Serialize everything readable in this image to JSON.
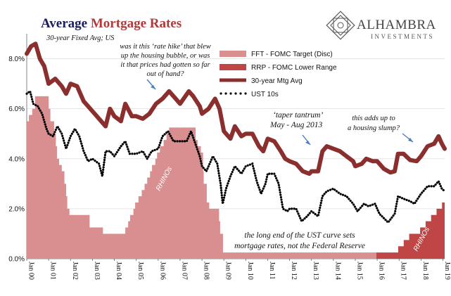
{
  "header": {
    "title_part1": "Average ",
    "title_part2": "Mortgage Rates",
    "subtitle": "30-year Fixed Avg; US"
  },
  "logo": {
    "name": "ALHAMBRA",
    "tagline": "INVESTMENTS",
    "icon": "geometric-star-logo"
  },
  "colors": {
    "fft": "#d98f8f",
    "rrp": "#c04545",
    "mortgage": "#8b2e2e",
    "ust": "#000000",
    "title_navy": "#1a1f5c",
    "title_red": "#b03a3a",
    "annotation_arrow": "#4a7cc0"
  },
  "annotations": {
    "rate_hike": [
      "was it this ‘rate hike’ that blew",
      "up the housing bubble, or was",
      "it that prices had gotten so far",
      "out of hand?"
    ],
    "taper": [
      "‘taper tantrum’",
      "May - Aug 2013"
    ],
    "slump": [
      "this adds up to",
      "a housing slump?"
    ],
    "long_end": [
      "the long end of the UST curve sets",
      "mortgage rates, not the Federal Reserve"
    ],
    "rhinos1": "RHINOs",
    "rhinos2": "RHINOs"
  },
  "chart_data": {
    "type": "line",
    "title": "Average Mortgage Rates",
    "subtitle": "30-year Fixed Avg; US",
    "x_range": [
      2000.0,
      2019.08
    ],
    "ylim": [
      0,
      9
    ],
    "y_ticks": [
      0,
      2,
      4,
      6,
      8
    ],
    "y_tick_labels": [
      "0.0%",
      "2.0%",
      "4.0%",
      "6.0%",
      "8.0%"
    ],
    "x_tick_labels": [
      "Jan 00",
      "Jan 01",
      "Jan 02",
      "Jan 03",
      "Jan 04",
      "Jan 05",
      "Jan 06",
      "Jan 07",
      "Jan 08",
      "Jan 09",
      "Jan 10",
      "Jan 11",
      "Jan 12",
      "Jan 13",
      "Jan 14",
      "Jan 15",
      "Jan 16",
      "Jan 17",
      "Jan 18",
      "Jan 19"
    ],
    "legend": {
      "placement": "top-center"
    },
    "series": [
      {
        "name": "FFT - FOMC Target (Disc)",
        "kind": "step-area",
        "points": [
          [
            2000.0,
            5.5
          ],
          [
            2000.1,
            5.75
          ],
          [
            2000.25,
            6.0
          ],
          [
            2000.38,
            6.5
          ],
          [
            2001.0,
            6.0
          ],
          [
            2001.08,
            5.5
          ],
          [
            2001.25,
            5.0
          ],
          [
            2001.33,
            4.5
          ],
          [
            2001.38,
            4.0
          ],
          [
            2001.48,
            3.75
          ],
          [
            2001.6,
            3.5
          ],
          [
            2001.72,
            3.0
          ],
          [
            2001.8,
            2.5
          ],
          [
            2001.85,
            2.0
          ],
          [
            2001.95,
            1.75
          ],
          [
            2002.87,
            1.25
          ],
          [
            2003.48,
            1.0
          ],
          [
            2004.5,
            1.25
          ],
          [
            2004.63,
            1.5
          ],
          [
            2004.72,
            1.75
          ],
          [
            2004.87,
            2.0
          ],
          [
            2004.95,
            2.25
          ],
          [
            2005.1,
            2.5
          ],
          [
            2005.25,
            2.75
          ],
          [
            2005.38,
            3.0
          ],
          [
            2005.5,
            3.25
          ],
          [
            2005.63,
            3.5
          ],
          [
            2005.72,
            3.75
          ],
          [
            2005.87,
            4.0
          ],
          [
            2005.95,
            4.25
          ],
          [
            2006.08,
            4.5
          ],
          [
            2006.25,
            4.75
          ],
          [
            2006.38,
            5.0
          ],
          [
            2006.5,
            5.25
          ],
          [
            2007.71,
            4.75
          ],
          [
            2007.8,
            4.5
          ],
          [
            2007.95,
            4.25
          ],
          [
            2008.05,
            3.5
          ],
          [
            2008.08,
            3.0
          ],
          [
            2008.22,
            2.25
          ],
          [
            2008.33,
            2.0
          ],
          [
            2008.78,
            1.5
          ],
          [
            2008.83,
            1.0
          ],
          [
            2008.96,
            0.25
          ],
          [
            2015.96,
            0.0
          ]
        ]
      },
      {
        "name": "RRP - FOMC Lower Range",
        "kind": "step-area",
        "points": [
          [
            2015.96,
            0.25
          ],
          [
            2016.96,
            0.5
          ],
          [
            2017.21,
            0.75
          ],
          [
            2017.46,
            1.0
          ],
          [
            2017.96,
            1.25
          ],
          [
            2018.21,
            1.5
          ],
          [
            2018.46,
            1.75
          ],
          [
            2018.71,
            2.0
          ],
          [
            2018.96,
            2.25
          ],
          [
            2019.08,
            2.25
          ]
        ]
      },
      {
        "name": "30-year Mtg Avg",
        "kind": "line",
        "points": [
          [
            2000.0,
            8.2
          ],
          [
            2000.2,
            8.5
          ],
          [
            2000.4,
            8.6
          ],
          [
            2000.6,
            8.0
          ],
          [
            2000.8,
            7.7
          ],
          [
            2001.0,
            7.0
          ],
          [
            2001.3,
            7.2
          ],
          [
            2001.6,
            6.9
          ],
          [
            2001.8,
            6.6
          ],
          [
            2002.0,
            7.0
          ],
          [
            2002.3,
            6.9
          ],
          [
            2002.6,
            6.3
          ],
          [
            2002.8,
            6.1
          ],
          [
            2003.0,
            5.9
          ],
          [
            2003.4,
            5.5
          ],
          [
            2003.6,
            5.3
          ],
          [
            2003.8,
            6.0
          ],
          [
            2004.0,
            5.7
          ],
          [
            2004.3,
            5.5
          ],
          [
            2004.5,
            6.2
          ],
          [
            2004.8,
            5.7
          ],
          [
            2005.0,
            5.7
          ],
          [
            2005.3,
            5.6
          ],
          [
            2005.6,
            5.8
          ],
          [
            2005.9,
            6.2
          ],
          [
            2006.2,
            6.4
          ],
          [
            2006.5,
            6.7
          ],
          [
            2006.8,
            6.4
          ],
          [
            2007.0,
            6.2
          ],
          [
            2007.4,
            6.7
          ],
          [
            2007.6,
            6.5
          ],
          [
            2007.9,
            6.1
          ],
          [
            2008.0,
            5.8
          ],
          [
            2008.3,
            6.0
          ],
          [
            2008.6,
            6.4
          ],
          [
            2008.8,
            6.0
          ],
          [
            2009.0,
            5.1
          ],
          [
            2009.3,
            4.8
          ],
          [
            2009.5,
            5.3
          ],
          [
            2009.8,
            4.9
          ],
          [
            2010.0,
            5.0
          ],
          [
            2010.3,
            5.0
          ],
          [
            2010.6,
            4.5
          ],
          [
            2010.8,
            4.3
          ],
          [
            2011.0,
            4.8
          ],
          [
            2011.3,
            4.7
          ],
          [
            2011.6,
            4.3
          ],
          [
            2011.8,
            4.0
          ],
          [
            2012.0,
            3.9
          ],
          [
            2012.3,
            3.8
          ],
          [
            2012.6,
            3.5
          ],
          [
            2012.9,
            3.4
          ],
          [
            2013.0,
            3.5
          ],
          [
            2013.3,
            3.5
          ],
          [
            2013.5,
            4.3
          ],
          [
            2013.7,
            4.5
          ],
          [
            2014.0,
            4.4
          ],
          [
            2014.3,
            4.3
          ],
          [
            2014.6,
            4.1
          ],
          [
            2014.9,
            3.9
          ],
          [
            2015.0,
            3.7
          ],
          [
            2015.3,
            3.8
          ],
          [
            2015.5,
            4.0
          ],
          [
            2015.8,
            3.9
          ],
          [
            2016.0,
            3.9
          ],
          [
            2016.3,
            3.6
          ],
          [
            2016.6,
            3.45
          ],
          [
            2016.8,
            3.5
          ],
          [
            2016.95,
            4.2
          ],
          [
            2017.2,
            4.2
          ],
          [
            2017.5,
            3.95
          ],
          [
            2017.8,
            3.9
          ],
          [
            2018.0,
            4.1
          ],
          [
            2018.3,
            4.5
          ],
          [
            2018.6,
            4.6
          ],
          [
            2018.8,
            4.9
          ],
          [
            2018.95,
            4.6
          ],
          [
            2019.08,
            4.4
          ]
        ]
      },
      {
        "name": "UST 10s",
        "kind": "dots",
        "points": [
          [
            2000.0,
            6.6
          ],
          [
            2000.15,
            6.7
          ],
          [
            2000.3,
            6.2
          ],
          [
            2000.5,
            6.1
          ],
          [
            2000.7,
            5.8
          ],
          [
            2000.9,
            5.2
          ],
          [
            2001.0,
            5.0
          ],
          [
            2001.2,
            4.9
          ],
          [
            2001.4,
            5.3
          ],
          [
            2001.6,
            5.0
          ],
          [
            2001.8,
            4.4
          ],
          [
            2002.0,
            4.9
          ],
          [
            2002.2,
            5.2
          ],
          [
            2002.4,
            4.9
          ],
          [
            2002.6,
            4.3
          ],
          [
            2002.8,
            3.9
          ],
          [
            2003.0,
            4.0
          ],
          [
            2003.3,
            3.8
          ],
          [
            2003.45,
            3.3
          ],
          [
            2003.6,
            4.3
          ],
          [
            2003.8,
            4.3
          ],
          [
            2004.0,
            4.1
          ],
          [
            2004.3,
            4.5
          ],
          [
            2004.5,
            4.7
          ],
          [
            2004.7,
            4.2
          ],
          [
            2005.0,
            4.2
          ],
          [
            2005.3,
            4.3
          ],
          [
            2005.5,
            4.0
          ],
          [
            2005.7,
            4.3
          ],
          [
            2006.0,
            4.4
          ],
          [
            2006.2,
            4.9
          ],
          [
            2006.45,
            5.1
          ],
          [
            2006.7,
            4.7
          ],
          [
            2007.0,
            4.7
          ],
          [
            2007.3,
            4.7
          ],
          [
            2007.5,
            5.1
          ],
          [
            2007.7,
            4.6
          ],
          [
            2007.9,
            4.1
          ],
          [
            2008.0,
            3.7
          ],
          [
            2008.2,
            3.5
          ],
          [
            2008.5,
            4.1
          ],
          [
            2008.7,
            3.8
          ],
          [
            2008.85,
            3.0
          ],
          [
            2008.95,
            2.2
          ],
          [
            2009.1,
            2.8
          ],
          [
            2009.3,
            3.3
          ],
          [
            2009.5,
            3.7
          ],
          [
            2009.8,
            3.4
          ],
          [
            2010.0,
            3.7
          ],
          [
            2010.3,
            3.8
          ],
          [
            2010.5,
            3.1
          ],
          [
            2010.7,
            2.6
          ],
          [
            2010.9,
            3.0
          ],
          [
            2011.0,
            3.4
          ],
          [
            2011.3,
            3.4
          ],
          [
            2011.5,
            3.0
          ],
          [
            2011.7,
            2.0
          ],
          [
            2011.9,
            1.9
          ],
          [
            2012.0,
            2.0
          ],
          [
            2012.3,
            2.0
          ],
          [
            2012.55,
            1.5
          ],
          [
            2012.8,
            1.7
          ],
          [
            2013.0,
            1.9
          ],
          [
            2013.3,
            1.7
          ],
          [
            2013.5,
            2.5
          ],
          [
            2013.7,
            2.7
          ],
          [
            2014.0,
            2.8
          ],
          [
            2014.3,
            2.6
          ],
          [
            2014.6,
            2.5
          ],
          [
            2014.9,
            2.2
          ],
          [
            2015.1,
            1.9
          ],
          [
            2015.4,
            2.2
          ],
          [
            2015.6,
            2.1
          ],
          [
            2015.9,
            2.2
          ],
          [
            2016.1,
            1.8
          ],
          [
            2016.5,
            1.45
          ],
          [
            2016.8,
            1.8
          ],
          [
            2016.95,
            2.5
          ],
          [
            2017.2,
            2.4
          ],
          [
            2017.5,
            2.3
          ],
          [
            2017.7,
            2.2
          ],
          [
            2018.0,
            2.6
          ],
          [
            2018.3,
            2.9
          ],
          [
            2018.6,
            2.9
          ],
          [
            2018.8,
            3.1
          ],
          [
            2018.95,
            2.8
          ],
          [
            2019.08,
            2.7
          ]
        ]
      }
    ]
  }
}
